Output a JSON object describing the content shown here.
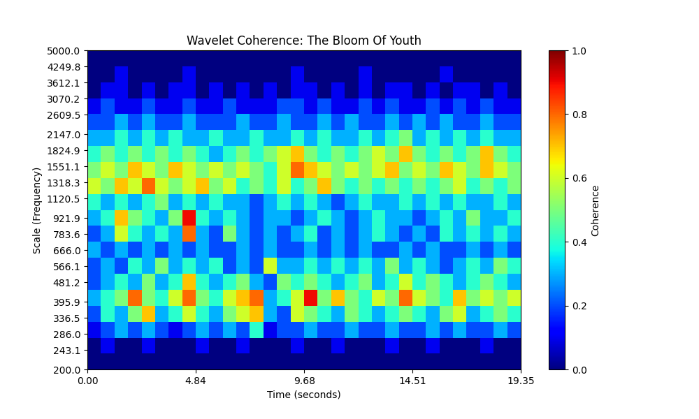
{
  "chart_data": {
    "type": "heatmap",
    "title": "Wavelet Coherence: The Bloom Of Youth",
    "x_label": "Time (seconds)",
    "y_label": "Scale (Frequency)",
    "log": "y",
    "color": "jet",
    "xlim": [
      0,
      19.35
    ],
    "xticks": [
      {
        "value": 0,
        "label": "0.00"
      },
      4.84,
      9.68,
      14.51,
      19.35
    ],
    "ylim": [
      200,
      5000
    ],
    "yticks": [
      {
        "value": 200,
        "label": "200.0"
      },
      243.1,
      {
        "value": 286,
        "label": "286.0"
      },
      336.5,
      395.9,
      481.2,
      566.1,
      {
        "value": 666,
        "label": "666.0"
      },
      783.6,
      921.9,
      1120.5,
      1318.3,
      1551.1,
      1824.9,
      {
        "value": 2147,
        "label": "2147.0"
      },
      2609.5,
      3070.2,
      3612.1,
      4249.8,
      {
        "value": 5000,
        "label": "5000.0"
      }
    ],
    "x_edges": [
      0,
      0.605,
      1.209,
      1.814,
      2.419,
      3.023,
      3.628,
      4.233,
      4.838,
      5.442,
      6.047,
      6.652,
      7.256,
      7.861,
      8.466,
      9.07,
      9.675,
      10.28,
      10.884,
      11.489,
      12.094,
      12.698,
      13.303,
      13.908,
      14.513,
      15.117,
      15.722,
      16.327,
      16.931,
      17.536,
      18.141,
      18.745,
      19.35
    ],
    "y_edges": [
      200,
      234.9,
      275.9,
      324.1,
      380.7,
      447.2,
      525.3,
      617.0,
      724.8,
      851.3,
      1000,
      1174.6,
      1379.7,
      1620.6,
      1903.6,
      2236.1,
      2626.5,
      3085.2,
      3623.9,
      4256.7,
      5000
    ],
    "cells": [
      [
        0,
        0,
        0,
        0,
        0,
        0,
        0,
        0,
        0,
        0,
        0,
        0,
        0,
        0,
        0,
        0,
        0,
        0,
        0,
        0,
        0,
        0,
        0,
        0,
        0,
        0,
        0,
        0,
        0,
        0,
        0,
        0
      ],
      [
        0,
        0.1,
        0,
        0,
        0.1,
        0,
        0,
        0,
        0.1,
        0,
        0,
        0.1,
        0,
        0,
        0,
        0.1,
        0,
        0,
        0.1,
        0,
        0,
        0,
        0.1,
        0,
        0,
        0.1,
        0,
        0,
        0,
        0.1,
        0,
        0
      ],
      [
        0.1,
        0.2,
        0.3,
        0.2,
        0.3,
        0.2,
        0.1,
        0.2,
        0.3,
        0.2,
        0.3,
        0.2,
        0.4,
        0.1,
        0.2,
        0.2,
        0.3,
        0.2,
        0.2,
        0.3,
        0.2,
        0.2,
        0.3,
        0.2,
        0.2,
        0.3,
        0.2,
        0.3,
        0.2,
        0.2,
        0.3,
        0.2
      ],
      [
        0.2,
        0.4,
        0.3,
        0.5,
        0.7,
        0.3,
        0.4,
        0.6,
        0.4,
        0.3,
        0.5,
        0.6,
        0.7,
        0.3,
        0.2,
        0.6,
        0.5,
        0.4,
        0.3,
        0.5,
        0.4,
        0.3,
        0.4,
        0.5,
        0.4,
        0.3,
        0.5,
        0.6,
        0.3,
        0.4,
        0.5,
        0.4
      ],
      [
        0.3,
        0.4,
        0.5,
        0.8,
        0.5,
        0.4,
        0.6,
        0.8,
        0.5,
        0.4,
        0.6,
        0.7,
        0.8,
        0.3,
        0.4,
        0.6,
        0.9,
        0.5,
        0.7,
        0.5,
        0.4,
        0.6,
        0.5,
        0.8,
        0.6,
        0.5,
        0.4,
        0.7,
        0.5,
        0.6,
        0.5,
        0.6
      ],
      [
        0.2,
        0.3,
        0.4,
        0.3,
        0.5,
        0.3,
        0.4,
        0.7,
        0.4,
        0.3,
        0.4,
        0.5,
        0.3,
        0.2,
        0.5,
        0.4,
        0.5,
        0.4,
        0.3,
        0.4,
        0.5,
        0.3,
        0.4,
        0.6,
        0.4,
        0.5,
        0.4,
        0.3,
        0.4,
        0.5,
        0.4,
        0.3
      ],
      [
        0.2,
        0.3,
        0.2,
        0.4,
        0.3,
        0.5,
        0.3,
        0.4,
        0.3,
        0.4,
        0.2,
        0.3,
        0.2,
        0.6,
        0.3,
        0.3,
        0.4,
        0.3,
        0.4,
        0.3,
        0.4,
        0.3,
        0.5,
        0.3,
        0.4,
        0.3,
        0.2,
        0.3,
        0.4,
        0.3,
        0.5,
        0.4
      ],
      [
        0.3,
        0.2,
        0.3,
        0.2,
        0.3,
        0.2,
        0.3,
        0.2,
        0.3,
        0.2,
        0.2,
        0.3,
        0.2,
        0.3,
        0.2,
        0.2,
        0.3,
        0.2,
        0.3,
        0.2,
        0.3,
        0.2,
        0.2,
        0.3,
        0.2,
        0.3,
        0.2,
        0.2,
        0.3,
        0.2,
        0.3,
        0.2
      ],
      [
        0.2,
        0.3,
        0.6,
        0.4,
        0.3,
        0.4,
        0.3,
        0.8,
        0.3,
        0.2,
        0.5,
        0.3,
        0.2,
        0.3,
        0.2,
        0.3,
        0.4,
        0.2,
        0.3,
        0.2,
        0.3,
        0.4,
        0.3,
        0.2,
        0.3,
        0.2,
        0.4,
        0.3,
        0.4,
        0.3,
        0.4,
        0.3
      ],
      [
        0.3,
        0.4,
        0.7,
        0.5,
        0.4,
        0.3,
        0.5,
        0.9,
        0.4,
        0.3,
        0.4,
        0.3,
        0.2,
        0.3,
        0.3,
        0.2,
        0.3,
        0.4,
        0.3,
        0.2,
        0.3,
        0.4,
        0.3,
        0.3,
        0.2,
        0.3,
        0.4,
        0.3,
        0.5,
        0.3,
        0.3,
        0.4
      ],
      [
        0.4,
        0.3,
        0.4,
        0.3,
        0.4,
        0.5,
        0.3,
        0.4,
        0.3,
        0.4,
        0.3,
        0.3,
        0.2,
        0.3,
        0.4,
        0.3,
        0.4,
        0.3,
        0.2,
        0.3,
        0.4,
        0.3,
        0.3,
        0.4,
        0.3,
        0.4,
        0.3,
        0.4,
        0.3,
        0.3,
        0.4,
        0.3
      ],
      [
        0.6,
        0.5,
        0.7,
        0.6,
        0.8,
        0.6,
        0.5,
        0.6,
        0.7,
        0.5,
        0.6,
        0.4,
        0.5,
        0.4,
        0.6,
        0.4,
        0.5,
        0.7,
        0.5,
        0.4,
        0.5,
        0.4,
        0.5,
        0.4,
        0.5,
        0.4,
        0.5,
        0.6,
        0.4,
        0.5,
        0.4,
        0.5
      ],
      [
        0.5,
        0.6,
        0.5,
        0.7,
        0.6,
        0.5,
        0.7,
        0.6,
        0.5,
        0.6,
        0.5,
        0.6,
        0.5,
        0.4,
        0.6,
        0.8,
        0.7,
        0.6,
        0.5,
        0.6,
        0.5,
        0.6,
        0.7,
        0.5,
        0.6,
        0.5,
        0.7,
        0.6,
        0.5,
        0.7,
        0.6,
        0.5
      ],
      [
        0.4,
        0.5,
        0.4,
        0.5,
        0.4,
        0.5,
        0.4,
        0.5,
        0.4,
        0.3,
        0.4,
        0.5,
        0.4,
        0.5,
        0.6,
        0.7,
        0.5,
        0.4,
        0.5,
        0.4,
        0.5,
        0.6,
        0.5,
        0.7,
        0.5,
        0.4,
        0.5,
        0.4,
        0.5,
        0.7,
        0.5,
        0.4
      ],
      [
        0.3,
        0.3,
        0.4,
        0.3,
        0.4,
        0.3,
        0.4,
        0.3,
        0.3,
        0.4,
        0.3,
        0.3,
        0.4,
        0.3,
        0.3,
        0.4,
        0.3,
        0.4,
        0.3,
        0.3,
        0.4,
        0.3,
        0.4,
        0.5,
        0.3,
        0.4,
        0.3,
        0.4,
        0.3,
        0.4,
        0.3,
        0.3
      ],
      [
        0.2,
        0.2,
        0.3,
        0.2,
        0.3,
        0.2,
        0.2,
        0.3,
        0.2,
        0.2,
        0.2,
        0.3,
        0.2,
        0.2,
        0.3,
        0.2,
        0.2,
        0.3,
        0.2,
        0.3,
        0.2,
        0.2,
        0.3,
        0.2,
        0.3,
        0.2,
        0.3,
        0.2,
        0.2,
        0.3,
        0.2,
        0.2
      ],
      [
        0.1,
        0.2,
        0.1,
        0.1,
        0.2,
        0.1,
        0.1,
        0.2,
        0.1,
        0.1,
        0.2,
        0.1,
        0.1,
        0.1,
        0.2,
        0.2,
        0.1,
        0.2,
        0.1,
        0.1,
        0.2,
        0.1,
        0.2,
        0.1,
        0.1,
        0.2,
        0.1,
        0.2,
        0.1,
        0.2,
        0.1,
        0.1
      ],
      [
        0,
        0.1,
        0.1,
        0,
        0.1,
        0,
        0.1,
        0.1,
        0,
        0.1,
        0,
        0.1,
        0,
        0.1,
        0,
        0.1,
        0.1,
        0,
        0.1,
        0,
        0.1,
        0,
        0.1,
        0.1,
        0,
        0.1,
        0,
        0.1,
        0.1,
        0,
        0.1,
        0
      ],
      [
        0,
        0,
        0.1,
        0,
        0,
        0,
        0,
        0.1,
        0,
        0,
        0,
        0,
        0,
        0,
        0,
        0.1,
        0,
        0,
        0,
        0,
        0.1,
        0,
        0,
        0,
        0,
        0,
        0.1,
        0,
        0,
        0,
        0,
        0
      ],
      [
        0,
        0,
        0,
        0,
        0,
        0,
        0,
        0,
        0,
        0,
        0,
        0,
        0,
        0,
        0,
        0,
        0,
        0,
        0,
        0,
        0,
        0,
        0,
        0,
        0,
        0,
        0,
        0,
        0,
        0,
        0,
        0
      ]
    ],
    "colorbar": {
      "label": "Coherence",
      "range": [
        0,
        1
      ],
      "ticks": [
        {
          "value": 0,
          "label": "0.0"
        },
        0.2,
        0.4,
        0.6,
        0.8,
        {
          "value": 1,
          "label": "1.0"
        }
      ]
    }
  }
}
